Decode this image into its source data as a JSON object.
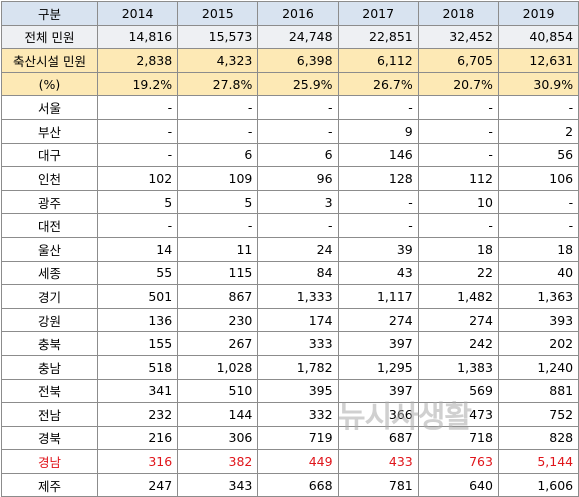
{
  "table": {
    "header": {
      "label": "구분",
      "years": [
        "2014",
        "2015",
        "2016",
        "2017",
        "2018",
        "2019"
      ]
    },
    "rows": [
      {
        "label": "전체 민원",
        "values": [
          "14,816",
          "15,573",
          "24,748",
          "22,851",
          "32,452",
          "40,854"
        ],
        "style": "total"
      },
      {
        "label": "축산시설 민원",
        "values": [
          "2,838",
          "4,323",
          "6,398",
          "6,112",
          "6,705",
          "12,631"
        ],
        "style": "livestock"
      },
      {
        "label": "(%)",
        "values": [
          "19.2%",
          "27.8%",
          "25.9%",
          "26.7%",
          "20.7%",
          "30.9%"
        ],
        "style": "pct"
      },
      {
        "label": "서울",
        "values": [
          "-",
          "-",
          "-",
          "-",
          "-",
          "-"
        ],
        "style": ""
      },
      {
        "label": "부산",
        "values": [
          "-",
          "-",
          "-",
          "9",
          "-",
          "2"
        ],
        "style": ""
      },
      {
        "label": "대구",
        "values": [
          "-",
          "6",
          "6",
          "146",
          "-",
          "56"
        ],
        "style": ""
      },
      {
        "label": "인천",
        "values": [
          "102",
          "109",
          "96",
          "128",
          "112",
          "106"
        ],
        "style": ""
      },
      {
        "label": "광주",
        "values": [
          "5",
          "5",
          "3",
          "-",
          "10",
          "-"
        ],
        "style": ""
      },
      {
        "label": "대전",
        "values": [
          "-",
          "-",
          "-",
          "-",
          "-",
          "-"
        ],
        "style": ""
      },
      {
        "label": "울산",
        "values": [
          "14",
          "11",
          "24",
          "39",
          "18",
          "18"
        ],
        "style": ""
      },
      {
        "label": "세종",
        "values": [
          "55",
          "115",
          "84",
          "43",
          "22",
          "40"
        ],
        "style": ""
      },
      {
        "label": "경기",
        "values": [
          "501",
          "867",
          "1,333",
          "1,117",
          "1,482",
          "1,363"
        ],
        "style": ""
      },
      {
        "label": "강원",
        "values": [
          "136",
          "230",
          "174",
          "274",
          "274",
          "393"
        ],
        "style": ""
      },
      {
        "label": "충북",
        "values": [
          "155",
          "267",
          "333",
          "397",
          "242",
          "202"
        ],
        "style": ""
      },
      {
        "label": "충남",
        "values": [
          "518",
          "1,028",
          "1,782",
          "1,295",
          "1,383",
          "1,240"
        ],
        "style": ""
      },
      {
        "label": "전북",
        "values": [
          "341",
          "510",
          "395",
          "397",
          "569",
          "881"
        ],
        "style": ""
      },
      {
        "label": "전남",
        "values": [
          "232",
          "144",
          "332",
          "366",
          "473",
          "752"
        ],
        "style": ""
      },
      {
        "label": "경북",
        "values": [
          "216",
          "306",
          "719",
          "687",
          "718",
          "828"
        ],
        "style": ""
      },
      {
        "label": "경남",
        "values": [
          "316",
          "382",
          "449",
          "433",
          "763",
          "5,144"
        ],
        "style": "highlight"
      },
      {
        "label": "제주",
        "values": [
          "247",
          "343",
          "668",
          "781",
          "640",
          "1,606"
        ],
        "style": ""
      }
    ]
  },
  "watermark": "뉴시사생활"
}
